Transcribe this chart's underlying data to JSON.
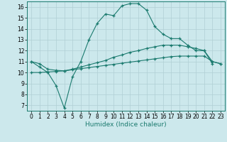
{
  "xlabel": "Humidex (Indice chaleur)",
  "xlim": [
    -0.5,
    23.5
  ],
  "ylim": [
    6.5,
    16.5
  ],
  "xticks": [
    0,
    1,
    2,
    3,
    4,
    5,
    6,
    7,
    8,
    9,
    10,
    11,
    12,
    13,
    14,
    15,
    16,
    17,
    18,
    19,
    20,
    21,
    22,
    23
  ],
  "yticks": [
    7,
    8,
    9,
    10,
    11,
    12,
    13,
    14,
    15,
    16
  ],
  "bg_color": "#cce8ec",
  "line_color": "#1a7a6e",
  "grid_color": "#b0cfd4",
  "line1_x": [
    0,
    1,
    2,
    3,
    4,
    5,
    6,
    7,
    8,
    9,
    10,
    11,
    12,
    13,
    14,
    15,
    16,
    17,
    18,
    19,
    20,
    21,
    22
  ],
  "line1_y": [
    11.0,
    10.5,
    10.0,
    8.8,
    6.75,
    9.6,
    11.0,
    13.0,
    14.5,
    15.35,
    15.2,
    16.1,
    16.3,
    16.3,
    15.7,
    14.2,
    13.5,
    13.1,
    13.1,
    12.5,
    12.0,
    12.0,
    10.8
  ],
  "line2_x": [
    0,
    1,
    2,
    3,
    4,
    5,
    6,
    7,
    8,
    9,
    10,
    11,
    12,
    13,
    14,
    15,
    16,
    17,
    18,
    19,
    20,
    21,
    22,
    23
  ],
  "line2_y": [
    11.0,
    10.8,
    10.3,
    10.2,
    10.15,
    10.3,
    10.5,
    10.7,
    10.9,
    11.1,
    11.4,
    11.6,
    11.85,
    12.0,
    12.2,
    12.35,
    12.5,
    12.5,
    12.5,
    12.35,
    12.2,
    12.0,
    11.0,
    10.8
  ],
  "line3_x": [
    0,
    1,
    2,
    3,
    4,
    5,
    6,
    7,
    8,
    9,
    10,
    11,
    12,
    13,
    14,
    15,
    16,
    17,
    18,
    19,
    20,
    21,
    22,
    23
  ],
  "line3_y": [
    10.0,
    10.0,
    10.05,
    10.1,
    10.15,
    10.25,
    10.35,
    10.45,
    10.55,
    10.65,
    10.75,
    10.85,
    10.95,
    11.05,
    11.15,
    11.25,
    11.35,
    11.45,
    11.5,
    11.5,
    11.5,
    11.5,
    11.0,
    10.8
  ],
  "tick_fontsize": 5.5,
  "label_fontsize": 6.5
}
